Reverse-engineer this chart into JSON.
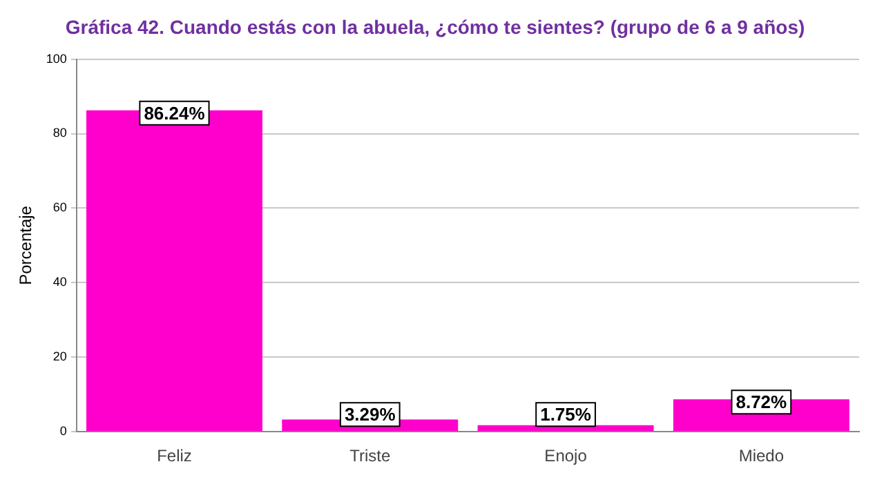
{
  "chart_data": {
    "type": "bar",
    "title": "Gráfica 42. Cuando estás con la abuela, ¿cómo te sientes? (grupo de 6 a 9 años)",
    "ylabel": "Porcentaje",
    "categories": [
      "Feliz",
      "Triste",
      "Enojo",
      "Miedo"
    ],
    "values": [
      86.24,
      3.29,
      1.75,
      8.72
    ],
    "value_labels": [
      "86.24%",
      "3.29%",
      "1.75%",
      "8.72%"
    ],
    "color": "#ff00cc",
    "ylim": [
      0,
      100
    ],
    "yticks": [
      0,
      20,
      40,
      60,
      80,
      100
    ],
    "grid": "y",
    "legend": false
  }
}
